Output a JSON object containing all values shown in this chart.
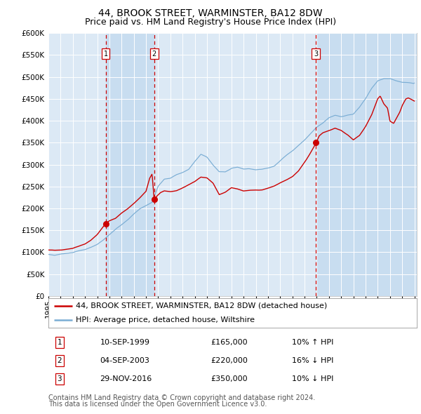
{
  "title": "44, BROOK STREET, WARMINSTER, BA12 8DW",
  "subtitle": "Price paid vs. HM Land Registry's House Price Index (HPI)",
  "legend_label_red": "44, BROOK STREET, WARMINSTER, BA12 8DW (detached house)",
  "legend_label_blue": "HPI: Average price, detached house, Wiltshire",
  "footer_line1": "Contains HM Land Registry data © Crown copyright and database right 2024.",
  "footer_line2": "This data is licensed under the Open Government Licence v3.0.",
  "transactions": [
    {
      "num": 1,
      "date": "10-SEP-1999",
      "price": 165000,
      "hpi_diff": "10% ↑ HPI"
    },
    {
      "num": 2,
      "date": "04-SEP-2003",
      "price": 220000,
      "hpi_diff": "16% ↓ HPI"
    },
    {
      "num": 3,
      "date": "29-NOV-2016",
      "price": 350000,
      "hpi_diff": "10% ↓ HPI"
    }
  ],
  "transaction_dates_dec": [
    1999.69,
    2003.67,
    2016.91
  ],
  "transaction_prices": [
    165000,
    220000,
    350000
  ],
  "ylim": [
    0,
    600000
  ],
  "ytick_values": [
    0,
    50000,
    100000,
    150000,
    200000,
    250000,
    300000,
    350000,
    400000,
    450000,
    500000,
    550000,
    600000
  ],
  "xlim_start": 1995.0,
  "xlim_end": 2025.2,
  "background_color": "#dce9f5",
  "grid_color": "#ffffff",
  "red_line_color": "#cc0000",
  "blue_line_color": "#7aadd4",
  "dashed_line_color": "#cc0000",
  "marker_color": "#cc0000",
  "shade_color": "#c8ddf0",
  "title_fontsize": 10,
  "subtitle_fontsize": 9,
  "axis_fontsize": 7.5,
  "legend_fontsize": 8,
  "table_fontsize": 8,
  "footer_fontsize": 7
}
